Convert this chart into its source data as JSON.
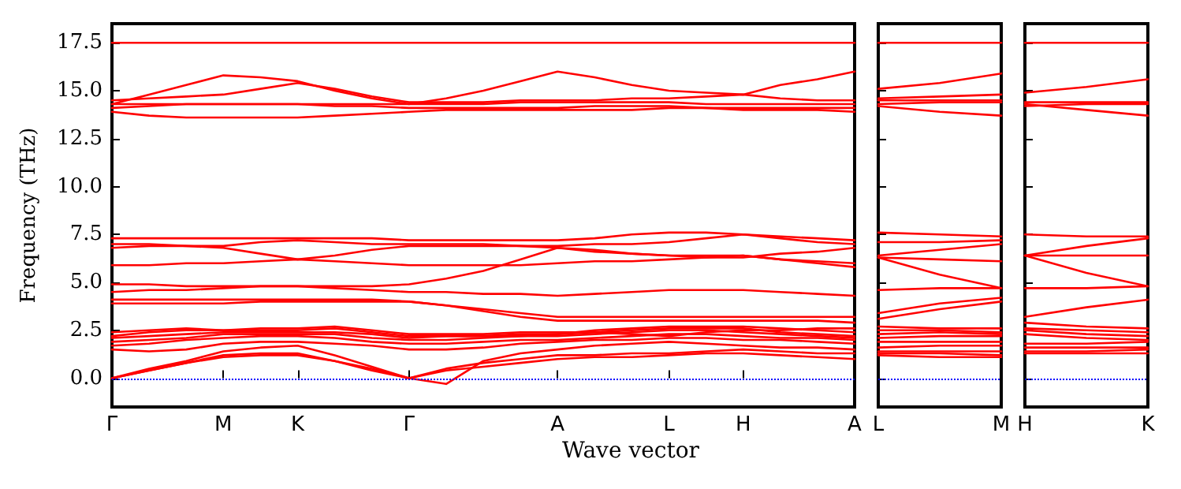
{
  "chart_data": [
    {
      "type": "line",
      "xlabel": "Wave vector",
      "ylabel": "Frequency (THz)",
      "tick_labels": "xy",
      "categories": [
        "Γ",
        null,
        null,
        "M",
        null,
        "K",
        null,
        null,
        "Γ",
        null,
        null,
        null,
        "A",
        null,
        null,
        "L",
        null,
        "H",
        null,
        null,
        "A"
      ],
      "ylim": [
        -1.5,
        18.5
      ],
      "yticks": [
        {
          "value": 0,
          "label": "0.0"
        },
        2.5,
        {
          "value": 5,
          "label": "5.0"
        },
        7.5,
        {
          "value": 10,
          "label": "10.0"
        },
        12.5,
        {
          "value": 15,
          "label": "15.0"
        },
        17.5
      ],
      "ref_lines": [
        {
          "axis": "y",
          "value": 0,
          "color": "#0000ff",
          "line_style": "dotted"
        }
      ],
      "series": [
        {
          "color": "#ff0000",
          "values": [
            17.5,
            17.5,
            17.5,
            17.5,
            17.5,
            17.5,
            17.5,
            17.5,
            17.5,
            17.5,
            17.5,
            17.5,
            17.5,
            17.5,
            17.5,
            17.5,
            17.5,
            17.5,
            17.5,
            17.5,
            17.5
          ]
        },
        {
          "color": "#ff0000",
          "values": [
            14.3,
            14.8,
            15.3,
            15.8,
            15.7,
            15.5,
            15.0,
            14.6,
            14.3,
            14.6,
            15.0,
            15.5,
            16.0,
            15.7,
            15.3,
            15.0,
            14.9,
            14.8,
            15.3,
            15.6,
            16.0
          ]
        },
        {
          "color": "#ff0000",
          "values": [
            14.5,
            14.6,
            14.7,
            14.8,
            15.1,
            15.4,
            15.1,
            14.7,
            14.4,
            14.4,
            14.4,
            14.5,
            14.5,
            14.5,
            14.6,
            14.6,
            14.7,
            14.8,
            14.6,
            14.5,
            14.5
          ]
        },
        {
          "color": "#ff0000",
          "values": [
            14.3,
            14.3,
            14.3,
            14.3,
            14.3,
            14.3,
            14.3,
            14.3,
            14.3,
            14.3,
            14.3,
            14.4,
            14.4,
            14.4,
            14.4,
            14.4,
            14.3,
            14.3,
            14.3,
            14.3,
            14.3
          ]
        },
        {
          "color": "#ff0000",
          "values": [
            14.1,
            14.2,
            14.3,
            14.3,
            14.3,
            14.3,
            14.2,
            14.2,
            14.1,
            14.1,
            14.1,
            14.1,
            14.1,
            14.2,
            14.2,
            14.2,
            14.1,
            14.1,
            14.1,
            14.1,
            14.1
          ]
        },
        {
          "color": "#ff0000",
          "values": [
            13.9,
            13.7,
            13.6,
            13.6,
            13.6,
            13.6,
            13.7,
            13.8,
            13.9,
            14.0,
            14.0,
            14.0,
            14.0,
            14.0,
            14.0,
            14.1,
            14.1,
            14.0,
            14.0,
            14.0,
            13.9
          ]
        },
        {
          "color": "#ff0000",
          "values": [
            7.3,
            7.3,
            7.3,
            7.3,
            7.3,
            7.3,
            7.3,
            7.3,
            7.2,
            7.2,
            7.2,
            7.2,
            7.2,
            7.3,
            7.5,
            7.6,
            7.6,
            7.5,
            7.4,
            7.3,
            7.2
          ]
        },
        {
          "color": "#ff0000",
          "values": [
            7.0,
            7.0,
            6.9,
            6.9,
            7.1,
            7.2,
            7.1,
            7.0,
            7.0,
            7.0,
            7.0,
            6.9,
            6.9,
            7.0,
            7.0,
            7.1,
            7.3,
            7.5,
            7.3,
            7.1,
            7.0
          ]
        },
        {
          "color": "#ff0000",
          "values": [
            6.8,
            6.9,
            6.9,
            6.8,
            6.5,
            6.2,
            6.4,
            6.7,
            6.9,
            6.9,
            6.9,
            6.9,
            6.8,
            6.6,
            6.5,
            6.4,
            6.3,
            6.3,
            6.5,
            6.6,
            6.8
          ]
        },
        {
          "color": "#ff0000",
          "values": [
            5.9,
            5.9,
            6.0,
            6.0,
            6.1,
            6.2,
            6.1,
            6.0,
            5.9,
            5.9,
            5.9,
            5.9,
            6.0,
            6.1,
            6.1,
            6.2,
            6.3,
            6.4,
            6.2,
            6.1,
            6.0
          ]
        },
        {
          "color": "#ff0000",
          "values": [
            4.9,
            4.9,
            4.8,
            4.8,
            4.8,
            4.8,
            4.8,
            4.8,
            4.9,
            5.2,
            5.6,
            6.2,
            6.8,
            6.7,
            6.5,
            6.4,
            6.4,
            6.4,
            6.2,
            6.0,
            5.8
          ]
        },
        {
          "color": "#ff0000",
          "values": [
            4.5,
            4.6,
            4.6,
            4.7,
            4.8,
            4.8,
            4.7,
            4.6,
            4.5,
            4.5,
            4.4,
            4.4,
            4.3,
            4.4,
            4.5,
            4.6,
            4.6,
            4.6,
            4.5,
            4.4,
            4.3
          ]
        },
        {
          "color": "#ff0000",
          "values": [
            4.1,
            4.1,
            4.1,
            4.1,
            4.1,
            4.1,
            4.1,
            4.1,
            4.0,
            3.8,
            3.6,
            3.4,
            3.2,
            3.2,
            3.2,
            3.2,
            3.2,
            3.2,
            3.2,
            3.2,
            3.2
          ]
        },
        {
          "color": "#ff0000",
          "values": [
            3.9,
            3.9,
            3.9,
            3.9,
            4.0,
            4.0,
            4.0,
            4.0,
            4.0,
            3.8,
            3.5,
            3.2,
            3.0,
            3.0,
            3.0,
            3.0,
            3.0,
            3.0,
            3.0,
            3.0,
            2.9
          ]
        },
        {
          "color": "#ff0000",
          "values": [
            0,
            0.4,
            0.8,
            1.1,
            1.2,
            1.2,
            0.9,
            0.4,
            0,
            -0.3,
            0.9,
            1.3,
            1.5,
            1.7,
            1.8,
            1.9,
            1.8,
            1.7,
            1.6,
            1.6,
            1.5
          ]
        },
        {
          "color": "#ff0000",
          "values": [
            0,
            0.4,
            0.8,
            1.2,
            1.3,
            1.3,
            0.9,
            0.5,
            0,
            0.4,
            0.6,
            0.8,
            1.0,
            1.1,
            1.1,
            1.2,
            1.3,
            1.3,
            1.2,
            1.1,
            1.0
          ]
        },
        {
          "color": "#ff0000",
          "values": [
            0,
            0.5,
            0.9,
            1.4,
            1.6,
            1.7,
            1.2,
            0.6,
            0,
            0.5,
            0.8,
            1.0,
            1.2,
            1.2,
            1.3,
            1.3,
            1.4,
            1.5,
            1.4,
            1.3,
            1.3
          ]
        },
        {
          "color": "#ff0000",
          "values": [
            1.5,
            1.4,
            1.5,
            1.8,
            1.9,
            1.9,
            1.8,
            1.7,
            1.5,
            1.5,
            1.6,
            1.8,
            1.9,
            2.0,
            2.0,
            2.1,
            2.1,
            2.0,
            2.0,
            1.9,
            1.8
          ]
        },
        {
          "color": "#ff0000",
          "values": [
            1.7,
            1.8,
            2.0,
            2.1,
            2.2,
            2.2,
            2.1,
            1.9,
            1.8,
            1.8,
            1.9,
            2.0,
            2.0,
            2.1,
            2.2,
            2.3,
            2.3,
            2.2,
            2.1,
            2.1,
            2.0
          ]
        },
        {
          "color": "#ff0000",
          "values": [
            1.9,
            2.0,
            2.1,
            2.3,
            2.3,
            2.3,
            2.3,
            2.1,
            2.0,
            2.0,
            2.1,
            2.2,
            2.2,
            2.3,
            2.4,
            2.5,
            2.5,
            2.4,
            2.3,
            2.2,
            2.1
          ]
        },
        {
          "color": "#ff0000",
          "values": [
            2.1,
            2.2,
            2.3,
            2.4,
            2.4,
            2.4,
            2.4,
            2.3,
            2.1,
            2.2,
            2.2,
            2.2,
            2.3,
            2.4,
            2.5,
            2.6,
            2.6,
            2.6,
            2.4,
            2.3,
            2.2
          ]
        },
        {
          "color": "#ff0000",
          "values": [
            2.2,
            2.4,
            2.5,
            2.5,
            2.5,
            2.5,
            2.6,
            2.4,
            2.2,
            2.2,
            2.2,
            2.3,
            2.3,
            2.5,
            2.6,
            2.7,
            2.7,
            2.7,
            2.6,
            2.5,
            2.4
          ]
        },
        {
          "color": "#ff0000",
          "values": [
            2.4,
            2.5,
            2.6,
            2.5,
            2.6,
            2.6,
            2.7,
            2.5,
            2.3,
            2.3,
            2.3,
            2.4,
            2.4,
            2.4,
            2.3,
            2.2,
            2.4,
            2.5,
            2.5,
            2.6,
            2.6
          ]
        }
      ]
    },
    {
      "type": "line",
      "tick_labels": "x",
      "categories": [
        "L",
        null,
        "M"
      ],
      "ylim": [
        -1.5,
        18.5
      ],
      "yticks": [
        0,
        2.5,
        5,
        7.5,
        10,
        12.5,
        15,
        17.5
      ],
      "ref_lines": [
        {
          "axis": "y",
          "value": 0,
          "color": "#0000ff",
          "line_style": "dotted"
        }
      ],
      "series": [
        {
          "color": "#ff0000",
          "values": [
            17.5,
            17.5,
            17.5
          ]
        },
        {
          "color": "#ff0000",
          "values": [
            15.1,
            15.4,
            15.9
          ]
        },
        {
          "color": "#ff0000",
          "values": [
            14.6,
            14.7,
            14.8
          ]
        },
        {
          "color": "#ff0000",
          "values": [
            14.5,
            14.5,
            14.5
          ]
        },
        {
          "color": "#ff0000",
          "values": [
            14.3,
            14.4,
            14.4
          ]
        },
        {
          "color": "#ff0000",
          "values": [
            14.2,
            13.9,
            13.7
          ]
        },
        {
          "color": "#ff0000",
          "values": [
            7.6,
            7.5,
            7.4
          ]
        },
        {
          "color": "#ff0000",
          "values": [
            7.1,
            7.1,
            7.2
          ]
        },
        {
          "color": "#ff0000",
          "values": [
            6.4,
            6.7,
            7.0
          ]
        },
        {
          "color": "#ff0000",
          "values": [
            6.3,
            6.2,
            6.1
          ]
        },
        {
          "color": "#ff0000",
          "values": [
            6.3,
            5.4,
            4.7
          ]
        },
        {
          "color": "#ff0000",
          "values": [
            4.6,
            4.7,
            4.7
          ]
        },
        {
          "color": "#ff0000",
          "values": [
            3.4,
            3.9,
            4.2
          ]
        },
        {
          "color": "#ff0000",
          "values": [
            3.1,
            3.6,
            4.0
          ]
        },
        {
          "color": "#ff0000",
          "values": [
            2.7,
            2.6,
            2.6
          ]
        },
        {
          "color": "#ff0000",
          "values": [
            2.5,
            2.5,
            2.4
          ]
        },
        {
          "color": "#ff0000",
          "values": [
            2.3,
            2.4,
            2.3
          ]
        },
        {
          "color": "#ff0000",
          "values": [
            2.1,
            2.2,
            2.2
          ]
        },
        {
          "color": "#ff0000",
          "values": [
            1.9,
            1.9,
            1.9
          ]
        },
        {
          "color": "#ff0000",
          "values": [
            1.6,
            1.7,
            1.7
          ]
        },
        {
          "color": "#ff0000",
          "values": [
            1.4,
            1.4,
            1.4
          ]
        },
        {
          "color": "#ff0000",
          "values": [
            1.3,
            1.3,
            1.2
          ]
        },
        {
          "color": "#ff0000",
          "values": [
            1.2,
            1.1,
            1.1
          ]
        }
      ]
    },
    {
      "type": "line",
      "tick_labels": "x",
      "categories": [
        "H",
        null,
        "K"
      ],
      "ylim": [
        -1.5,
        18.5
      ],
      "yticks": [
        0,
        2.5,
        5,
        7.5,
        10,
        12.5,
        15,
        17.5
      ],
      "ref_lines": [
        {
          "axis": "y",
          "value": 0,
          "color": "#0000ff",
          "line_style": "dotted"
        }
      ],
      "series": [
        {
          "color": "#ff0000",
          "values": [
            17.5,
            17.5,
            17.5
          ]
        },
        {
          "color": "#ff0000",
          "values": [
            14.9,
            15.2,
            15.6
          ]
        },
        {
          "color": "#ff0000",
          "values": [
            14.4,
            14.4,
            14.4
          ]
        },
        {
          "color": "#ff0000",
          "values": [
            14.2,
            14.3,
            14.3
          ]
        },
        {
          "color": "#ff0000",
          "values": [
            14.3,
            14.0,
            13.7
          ]
        },
        {
          "color": "#ff0000",
          "values": [
            7.5,
            7.4,
            7.4
          ]
        },
        {
          "color": "#ff0000",
          "values": [
            6.4,
            6.9,
            7.3
          ]
        },
        {
          "color": "#ff0000",
          "values": [
            6.4,
            6.4,
            6.4
          ]
        },
        {
          "color": "#ff0000",
          "values": [
            6.4,
            5.5,
            4.8
          ]
        },
        {
          "color": "#ff0000",
          "values": [
            4.7,
            4.7,
            4.8
          ]
        },
        {
          "color": "#ff0000",
          "values": [
            3.2,
            3.7,
            4.1
          ]
        },
        {
          "color": "#ff0000",
          "values": [
            2.9,
            2.7,
            2.6
          ]
        },
        {
          "color": "#ff0000",
          "values": [
            2.6,
            2.5,
            2.4
          ]
        },
        {
          "color": "#ff0000",
          "values": [
            2.5,
            2.3,
            2.2
          ]
        },
        {
          "color": "#ff0000",
          "values": [
            2.3,
            2.1,
            2.0
          ]
        },
        {
          "color": "#ff0000",
          "values": [
            1.8,
            1.8,
            1.9
          ]
        },
        {
          "color": "#ff0000",
          "values": [
            1.6,
            1.6,
            1.6
          ]
        },
        {
          "color": "#ff0000",
          "values": [
            1.4,
            1.4,
            1.5
          ]
        },
        {
          "color": "#ff0000",
          "values": [
            1.3,
            1.3,
            1.3
          ]
        }
      ]
    }
  ]
}
